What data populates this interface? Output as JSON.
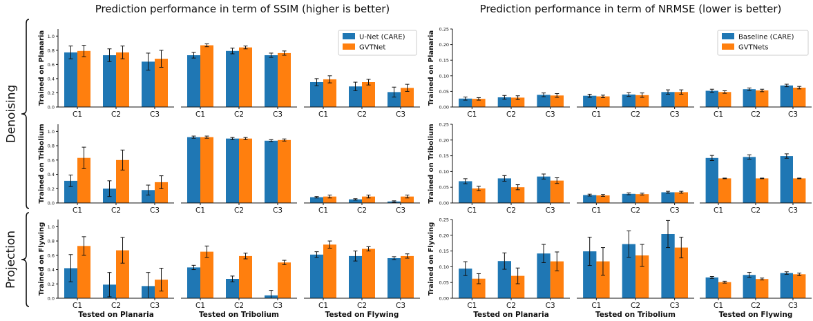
{
  "panel_titles": {
    "ssim": "Prediction performance in term of SSIM (higher is better)",
    "nrmse": "Prediction performance in term of NRMSE (lower is better)"
  },
  "group_labels": {
    "denoising": "Denoising",
    "projection": "Projection"
  },
  "row_labels": [
    "Trained on Planaria",
    "Trained on Tribolium",
    "Trained on Flywing"
  ],
  "col_labels": [
    "Tested on Planaria",
    "Tested on Tribolium",
    "Tested on Flywing"
  ],
  "colors": {
    "baseline": "#1f77b4",
    "ours": "#ff7f0e"
  },
  "chart_data": [
    {
      "type": "bar",
      "metric": "SSIM",
      "title": "Prediction performance in term of SSIM (higher is better)",
      "categories": [
        "C1",
        "C2",
        "C3"
      ],
      "ylim": [
        0,
        1.1
      ],
      "yticks": [
        0.0,
        0.2,
        0.4,
        0.6,
        0.8,
        1.0
      ],
      "legend": {
        "placement": "top-right",
        "entries": [
          "U-Net (CARE)",
          "GVTNet"
        ]
      },
      "series_names": [
        "U-Net (CARE)",
        "GVTNet"
      ],
      "grid": false,
      "cells": [
        {
          "trained": "Planaria",
          "tested": "Planaria",
          "series": [
            {
              "name": "U-Net (CARE)",
              "values": [
                0.77,
                0.73,
                0.64
              ],
              "errors": [
                0.09,
                0.09,
                0.12
              ]
            },
            {
              "name": "GVTNet",
              "values": [
                0.79,
                0.77,
                0.68
              ],
              "errors": [
                0.08,
                0.09,
                0.12
              ]
            }
          ]
        },
        {
          "trained": "Planaria",
          "tested": "Tribolium",
          "series": [
            {
              "name": "U-Net (CARE)",
              "values": [
                0.73,
                0.79,
                0.73
              ],
              "errors": [
                0.04,
                0.04,
                0.03
              ]
            },
            {
              "name": "GVTNet",
              "values": [
                0.87,
                0.84,
                0.76
              ],
              "errors": [
                0.02,
                0.02,
                0.03
              ]
            }
          ]
        },
        {
          "trained": "Planaria",
          "tested": "Flywing",
          "series": [
            {
              "name": "U-Net (CARE)",
              "values": [
                0.35,
                0.29,
                0.21
              ],
              "errors": [
                0.05,
                0.06,
                0.07
              ]
            },
            {
              "name": "GVTNet",
              "values": [
                0.39,
                0.35,
                0.27
              ],
              "errors": [
                0.05,
                0.04,
                0.05
              ]
            }
          ]
        },
        {
          "trained": "Tribolium",
          "tested": "Planaria",
          "series": [
            {
              "name": "U-Net (CARE)",
              "values": [
                0.31,
                0.2,
                0.18
              ],
              "errors": [
                0.08,
                0.11,
                0.07
              ]
            },
            {
              "name": "GVTNet",
              "values": [
                0.63,
                0.6,
                0.29
              ],
              "errors": [
                0.15,
                0.14,
                0.09
              ]
            }
          ]
        },
        {
          "trained": "Tribolium",
          "tested": "Tribolium",
          "series": [
            {
              "name": "U-Net (CARE)",
              "values": [
                0.92,
                0.9,
                0.87
              ],
              "errors": [
                0.015,
                0.015,
                0.015
              ]
            },
            {
              "name": "GVTNet",
              "values": [
                0.92,
                0.9,
                0.88
              ],
              "errors": [
                0.015,
                0.015,
                0.015
              ]
            }
          ]
        },
        {
          "trained": "Tribolium",
          "tested": "Flywing",
          "series": [
            {
              "name": "U-Net (CARE)",
              "values": [
                0.08,
                0.05,
                0.02
              ],
              "errors": [
                0.01,
                0.01,
                0.01
              ]
            },
            {
              "name": "GVTNet",
              "values": [
                0.09,
                0.09,
                0.09
              ],
              "errors": [
                0.02,
                0.02,
                0.02
              ]
            }
          ]
        },
        {
          "trained": "Flywing",
          "tested": "Planaria",
          "series": [
            {
              "name": "U-Net (CARE)",
              "values": [
                0.42,
                0.19,
                0.17
              ],
              "errors": [
                0.19,
                0.17,
                0.19
              ]
            },
            {
              "name": "GVTNet",
              "values": [
                0.73,
                0.67,
                0.26
              ],
              "errors": [
                0.13,
                0.18,
                0.16
              ]
            }
          ]
        },
        {
          "trained": "Flywing",
          "tested": "Tribolium",
          "series": [
            {
              "name": "U-Net (CARE)",
              "values": [
                0.43,
                0.27,
                0.04
              ],
              "errors": [
                0.03,
                0.04,
                0.07
              ]
            },
            {
              "name": "GVTNet",
              "values": [
                0.65,
                0.59,
                0.5
              ],
              "errors": [
                0.08,
                0.04,
                0.03
              ]
            }
          ]
        },
        {
          "trained": "Flywing",
          "tested": "Flywing",
          "series": [
            {
              "name": "U-Net (CARE)",
              "values": [
                0.61,
                0.59,
                0.56
              ],
              "errors": [
                0.04,
                0.07,
                0.02
              ]
            },
            {
              "name": "GVTNet",
              "values": [
                0.75,
                0.69,
                0.59
              ],
              "errors": [
                0.05,
                0.03,
                0.03
              ]
            }
          ]
        }
      ]
    },
    {
      "type": "bar",
      "metric": "NRMSE",
      "title": "Prediction performance in term of NRMSE (lower is better)",
      "categories": [
        "C1",
        "C2",
        "C3"
      ],
      "ylim": [
        0,
        0.25
      ],
      "yticks": [
        0.0,
        0.05,
        0.1,
        0.15,
        0.2,
        0.25
      ],
      "legend": {
        "placement": "top-right",
        "entries": [
          "Baseline (CARE)",
          "GVTNets"
        ]
      },
      "series_names": [
        "Baseline (CARE)",
        "GVTNets"
      ],
      "grid": false,
      "cells": [
        {
          "trained": "Planaria",
          "tested": "Planaria",
          "series": [
            {
              "name": "Baseline (CARE)",
              "values": [
                0.027,
                0.031,
                0.039
              ],
              "errors": [
                0.005,
                0.006,
                0.006
              ]
            },
            {
              "name": "GVTNets",
              "values": [
                0.026,
                0.03,
                0.037
              ],
              "errors": [
                0.004,
                0.006,
                0.006
              ]
            }
          ]
        },
        {
          "trained": "Planaria",
          "tested": "Tribolium",
          "series": [
            {
              "name": "Baseline (CARE)",
              "values": [
                0.036,
                0.04,
                0.048
              ],
              "errors": [
                0.005,
                0.006,
                0.007
              ]
            },
            {
              "name": "GVTNets",
              "values": [
                0.034,
                0.038,
                0.048
              ],
              "errors": [
                0.004,
                0.007,
                0.007
              ]
            }
          ]
        },
        {
          "trained": "Planaria",
          "tested": "Flywing",
          "series": [
            {
              "name": "Baseline (CARE)",
              "values": [
                0.052,
                0.057,
                0.069
              ],
              "errors": [
                0.005,
                0.004,
                0.004
              ]
            },
            {
              "name": "GVTNets",
              "values": [
                0.048,
                0.053,
                0.062
              ],
              "errors": [
                0.004,
                0.004,
                0.004
              ]
            }
          ]
        },
        {
          "trained": "Tribolium",
          "tested": "Planaria",
          "series": [
            {
              "name": "Baseline (CARE)",
              "values": [
                0.069,
                0.078,
                0.084
              ],
              "errors": [
                0.008,
                0.009,
                0.008
              ]
            },
            {
              "name": "GVTNets",
              "values": [
                0.046,
                0.05,
                0.071
              ],
              "errors": [
                0.007,
                0.008,
                0.009
              ]
            }
          ]
        },
        {
          "trained": "Tribolium",
          "tested": "Tribolium",
          "series": [
            {
              "name": "Baseline (CARE)",
              "values": [
                0.025,
                0.029,
                0.034
              ],
              "errors": [
                0.003,
                0.003,
                0.003
              ]
            },
            {
              "name": "GVTNets",
              "values": [
                0.024,
                0.028,
                0.034
              ],
              "errors": [
                0.003,
                0.003,
                0.003
              ]
            }
          ]
        },
        {
          "trained": "Tribolium",
          "tested": "Flywing",
          "series": [
            {
              "name": "Baseline (CARE)",
              "values": [
                0.143,
                0.146,
                0.149
              ],
              "errors": [
                0.008,
                0.007,
                0.007
              ]
            },
            {
              "name": "GVTNets",
              "values": [
                0.078,
                0.078,
                0.078
              ],
              "errors": [
                0.001,
                0.001,
                0.001
              ]
            }
          ]
        },
        {
          "trained": "Flywing",
          "tested": "Planaria",
          "series": [
            {
              "name": "Baseline (CARE)",
              "values": [
                0.094,
                0.118,
                0.142
              ],
              "errors": [
                0.022,
                0.026,
                0.029
              ]
            },
            {
              "name": "GVTNets",
              "values": [
                0.062,
                0.071,
                0.117
              ],
              "errors": [
                0.016,
                0.025,
                0.03
              ]
            }
          ]
        },
        {
          "trained": "Flywing",
          "tested": "Tribolium",
          "series": [
            {
              "name": "Baseline (CARE)",
              "values": [
                0.149,
                0.172,
                0.204
              ],
              "errors": [
                0.045,
                0.042,
                0.043
              ]
            },
            {
              "name": "GVTNets",
              "values": [
                0.117,
                0.136,
                0.161
              ],
              "errors": [
                0.044,
                0.035,
                0.033
              ]
            }
          ]
        },
        {
          "trained": "Flywing",
          "tested": "Flywing",
          "series": [
            {
              "name": "Baseline (CARE)",
              "values": [
                0.066,
                0.074,
                0.08
              ],
              "errors": [
                0.003,
                0.008,
                0.004
              ]
            },
            {
              "name": "GVTNets",
              "values": [
                0.051,
                0.061,
                0.076
              ],
              "errors": [
                0.003,
                0.003,
                0.004
              ]
            }
          ]
        }
      ]
    }
  ]
}
